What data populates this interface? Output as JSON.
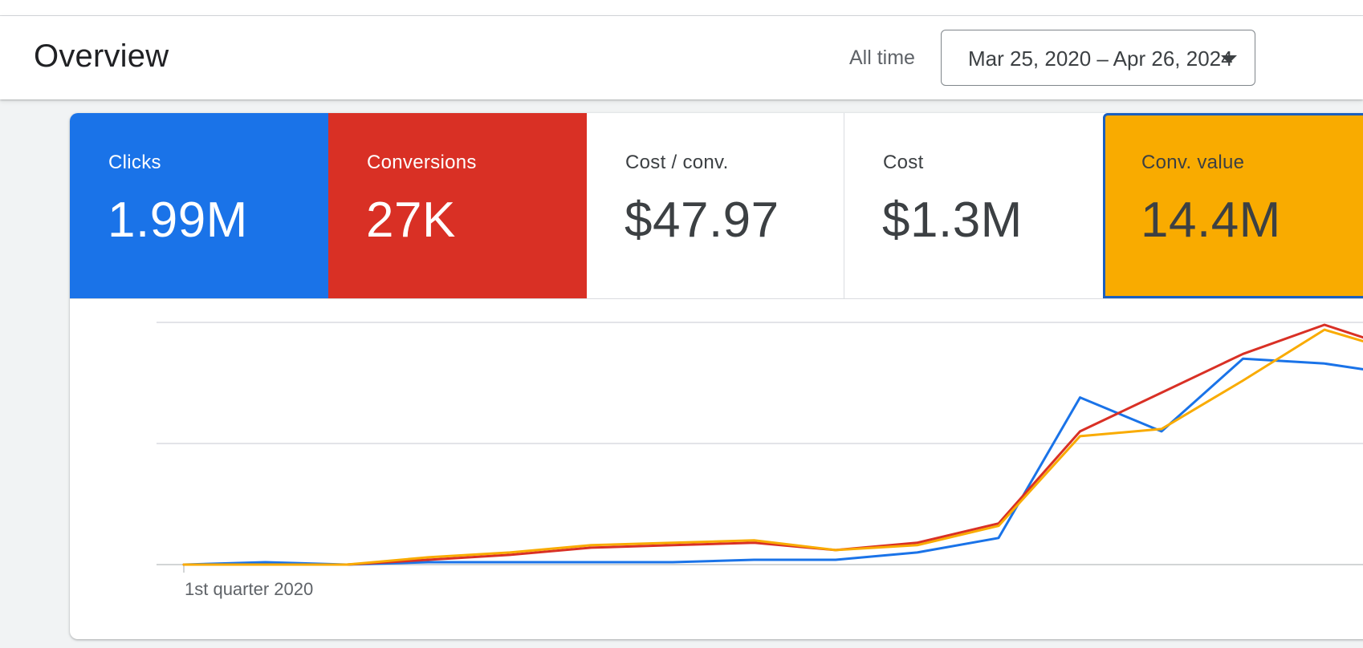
{
  "header": {
    "title": "Overview",
    "range_label": "All time",
    "date_range": "Mar 25, 2020 – Apr 26, 2024"
  },
  "colors": {
    "clicks": "#1a73e8",
    "conversions": "#d93025",
    "conv_value": "#f9ab00",
    "selected_border": "#1a5fbf"
  },
  "tiles": [
    {
      "key": "clicks",
      "label": "Clicks",
      "value": "1.99M",
      "color": "#1a73e8",
      "dark": true
    },
    {
      "key": "conversions",
      "label": "Conversions",
      "value": "27K",
      "color": "#d93025",
      "dark": true
    },
    {
      "key": "cost_conv",
      "label": "Cost / conv.",
      "value": "$47.97",
      "color": "#ffffff",
      "dark": false
    },
    {
      "key": "cost",
      "label": "Cost",
      "value": "$1.3M",
      "color": "#ffffff",
      "dark": false
    },
    {
      "key": "conv_value",
      "label": "Conv. value",
      "value": "14.4M",
      "color": "#f9ab00",
      "dark": false
    }
  ],
  "chart_data": {
    "type": "line",
    "x_tick_labels": [
      "1st quarter 2020"
    ],
    "grid": true,
    "ylim": [
      0,
      1
    ],
    "y_units": "fraction of series maximum (no axis values printed)",
    "series": [
      {
        "key": "clicks",
        "color": "#1a73e8",
        "values": [
          0.0,
          0.01,
          0.0,
          0.01,
          0.01,
          0.01,
          0.01,
          0.02,
          0.02,
          0.05,
          0.11,
          0.69,
          0.55,
          0.85,
          0.83,
          0.78
        ]
      },
      {
        "key": "conversions",
        "color": "#d93025",
        "values": [
          0.0,
          0.0,
          0.0,
          0.02,
          0.04,
          0.07,
          0.08,
          0.09,
          0.06,
          0.09,
          0.17,
          0.55,
          0.71,
          0.87,
          0.99,
          0.88
        ]
      },
      {
        "key": "conv_value",
        "color": "#f9ab00",
        "values": [
          0.0,
          0.0,
          0.0,
          0.03,
          0.05,
          0.08,
          0.09,
          0.1,
          0.06,
          0.08,
          0.16,
          0.53,
          0.56,
          0.76,
          0.97,
          0.87
        ]
      }
    ]
  }
}
